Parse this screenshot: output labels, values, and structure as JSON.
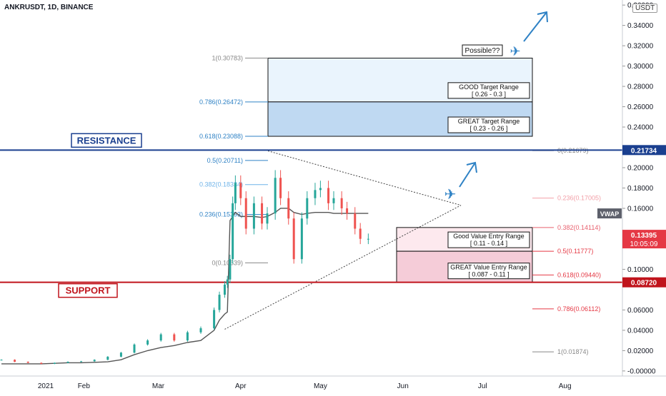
{
  "header": {
    "symbol_label": "ANKRUSDT, 1D, BINANCE"
  },
  "currency_badge": "USDT",
  "chart_data": {
    "type": "candlestick",
    "yrange": [
      -0.005,
      0.365
    ],
    "y_ticks": [
      {
        "v": 0.36,
        "label": "0.36000"
      },
      {
        "v": 0.34,
        "label": "0.34000"
      },
      {
        "v": 0.32,
        "label": "0.32000"
      },
      {
        "v": 0.3,
        "label": "0.30000"
      },
      {
        "v": 0.28,
        "label": "0.28000"
      },
      {
        "v": 0.26,
        "label": "0.26000"
      },
      {
        "v": 0.24,
        "label": "0.24000"
      },
      {
        "v": 0.2,
        "label": "0.20000"
      },
      {
        "v": 0.18,
        "label": "0.18000"
      },
      {
        "v": 0.16,
        "label": "0.16000"
      },
      {
        "v": 0.1,
        "label": "0.10000"
      },
      {
        "v": 0.06,
        "label": "0.06000"
      },
      {
        "v": 0.04,
        "label": "0.04000"
      },
      {
        "v": 0.02,
        "label": "0.02000"
      },
      {
        "v": 0.0,
        "label": "-0.00000"
      }
    ],
    "x_ticks": [
      "2021",
      "Feb",
      "Mar",
      "Apr",
      "May",
      "Jun",
      "Jul",
      "Aug"
    ],
    "price_tags": [
      {
        "v": 0.21734,
        "label": "0.21734",
        "color": "#1a3f8f"
      },
      {
        "v": 0.0872,
        "label": "0.08720",
        "color": "#c0141c"
      }
    ],
    "current_price": {
      "v": 0.13395,
      "label": "0.13395",
      "countdown": "10:05:09",
      "color": "#e53945"
    },
    "vwap_label": "VWAP",
    "fib_left": [
      {
        "v": 0.30783,
        "ratio": "1",
        "value": "0.30783",
        "text": "1(0.30783)",
        "color": "#888888"
      },
      {
        "v": 0.26472,
        "ratio": "0.786",
        "value": "0.26472",
        "text": "0.786(0.26472)",
        "color": "#2f82c5"
      },
      {
        "v": 0.23088,
        "ratio": "0.618",
        "value": "0.23088",
        "text": "0.618(0.23088)",
        "color": "#2f82c5"
      },
      {
        "v": 0.20711,
        "ratio": "0.5",
        "value": "0.20711",
        "text": "0.5(0.20711)",
        "color": "#2f82c5"
      },
      {
        "v": 0.18334,
        "ratio": "0.382",
        "value": "0.18334",
        "text": "0.382(0.18334)",
        "color": "#6fb3e8"
      },
      {
        "v": 0.15393,
        "ratio": "0.236",
        "value": "0.15393",
        "text": "0.236(0.15393)",
        "color": "#2f82c5"
      },
      {
        "v": 0.10639,
        "ratio": "0",
        "value": "0.10639",
        "text": "0(0.10639)",
        "color": "#888888"
      }
    ],
    "fib_right": [
      {
        "v": 0.21679,
        "text": "0(0.21679)",
        "color": "#888888"
      },
      {
        "v": 0.17005,
        "text": "0.236(0.17005)",
        "color": "#f2a0a8"
      },
      {
        "v": 0.14114,
        "text": "0.382(0.14114)",
        "color": "#e8606e"
      },
      {
        "v": 0.11777,
        "text": "0.5(0.11777)",
        "color": "#e53945"
      },
      {
        "v": 0.0944,
        "text": "0.618(0.09440)",
        "color": "#e53945"
      },
      {
        "v": 0.06112,
        "text": "0.786(0.06112)",
        "color": "#e53945"
      },
      {
        "v": 0.01874,
        "text": "1(0.01874)",
        "color": "#888888"
      }
    ],
    "zones": [
      {
        "title": "GOOD Target Range",
        "range": "[ 0.26 - 0.3 ]",
        "top": 0.30783,
        "bottom": 0.26472,
        "fill": "#eaf4fd"
      },
      {
        "title": "GREAT Target Range",
        "range": "[ 0.23 - 0.26 ]",
        "top": 0.26472,
        "bottom": 0.23088,
        "fill": "#bfd9f2"
      },
      {
        "title": "Good Value Entry Range",
        "range": "[ 0.11 - 0.14 ]",
        "top": 0.14114,
        "bottom": 0.11777,
        "fill": "#fde9ee"
      },
      {
        "title": "GREAT Value Entry Range",
        "range": "[ 0.087 - 0.11 ]",
        "top": 0.11777,
        "bottom": 0.0872,
        "fill": "#f5ccd8"
      }
    ],
    "levels": [
      {
        "name": "RESISTANCE",
        "v": 0.21734,
        "color": "#1a3f8f"
      },
      {
        "name": "SUPPORT",
        "v": 0.0872,
        "color": "#c0141c"
      }
    ],
    "callout": "Possible??",
    "series": {
      "x_days": [
        0,
        5,
        10,
        15,
        20,
        25,
        30,
        35,
        40,
        45,
        50,
        55,
        60,
        65,
        70,
        75,
        80,
        82,
        84,
        85,
        86,
        87,
        88,
        90,
        92,
        95,
        98,
        100,
        103,
        105,
        108,
        110,
        113,
        115,
        118,
        120,
        123,
        125,
        128,
        130,
        133,
        135,
        138
      ],
      "close": [
        0.011,
        0.009,
        0.008,
        0.007,
        0.008,
        0.009,
        0.0095,
        0.011,
        0.014,
        0.018,
        0.026,
        0.03,
        0.036,
        0.03,
        0.038,
        0.042,
        0.06,
        0.075,
        0.085,
        0.09,
        0.11,
        0.165,
        0.185,
        0.17,
        0.14,
        0.165,
        0.145,
        0.155,
        0.19,
        0.17,
        0.15,
        0.11,
        0.15,
        0.17,
        0.178,
        0.18,
        0.165,
        0.17,
        0.16,
        0.155,
        0.14,
        0.13,
        0.13
      ],
      "vwap": [
        0.007,
        0.007,
        0.007,
        0.007,
        0.0075,
        0.008,
        0.008,
        0.0085,
        0.009,
        0.011,
        0.016,
        0.02,
        0.023,
        0.025,
        0.028,
        0.03,
        0.04,
        0.05,
        0.056,
        0.058,
        0.148,
        0.152,
        0.156,
        0.152,
        0.152,
        0.152,
        0.151,
        0.152,
        0.156,
        0.16,
        0.16,
        0.156,
        0.154,
        0.155,
        0.156,
        0.156,
        0.156,
        0.155,
        0.155,
        0.155,
        0.155,
        0.155,
        0.155
      ]
    }
  }
}
